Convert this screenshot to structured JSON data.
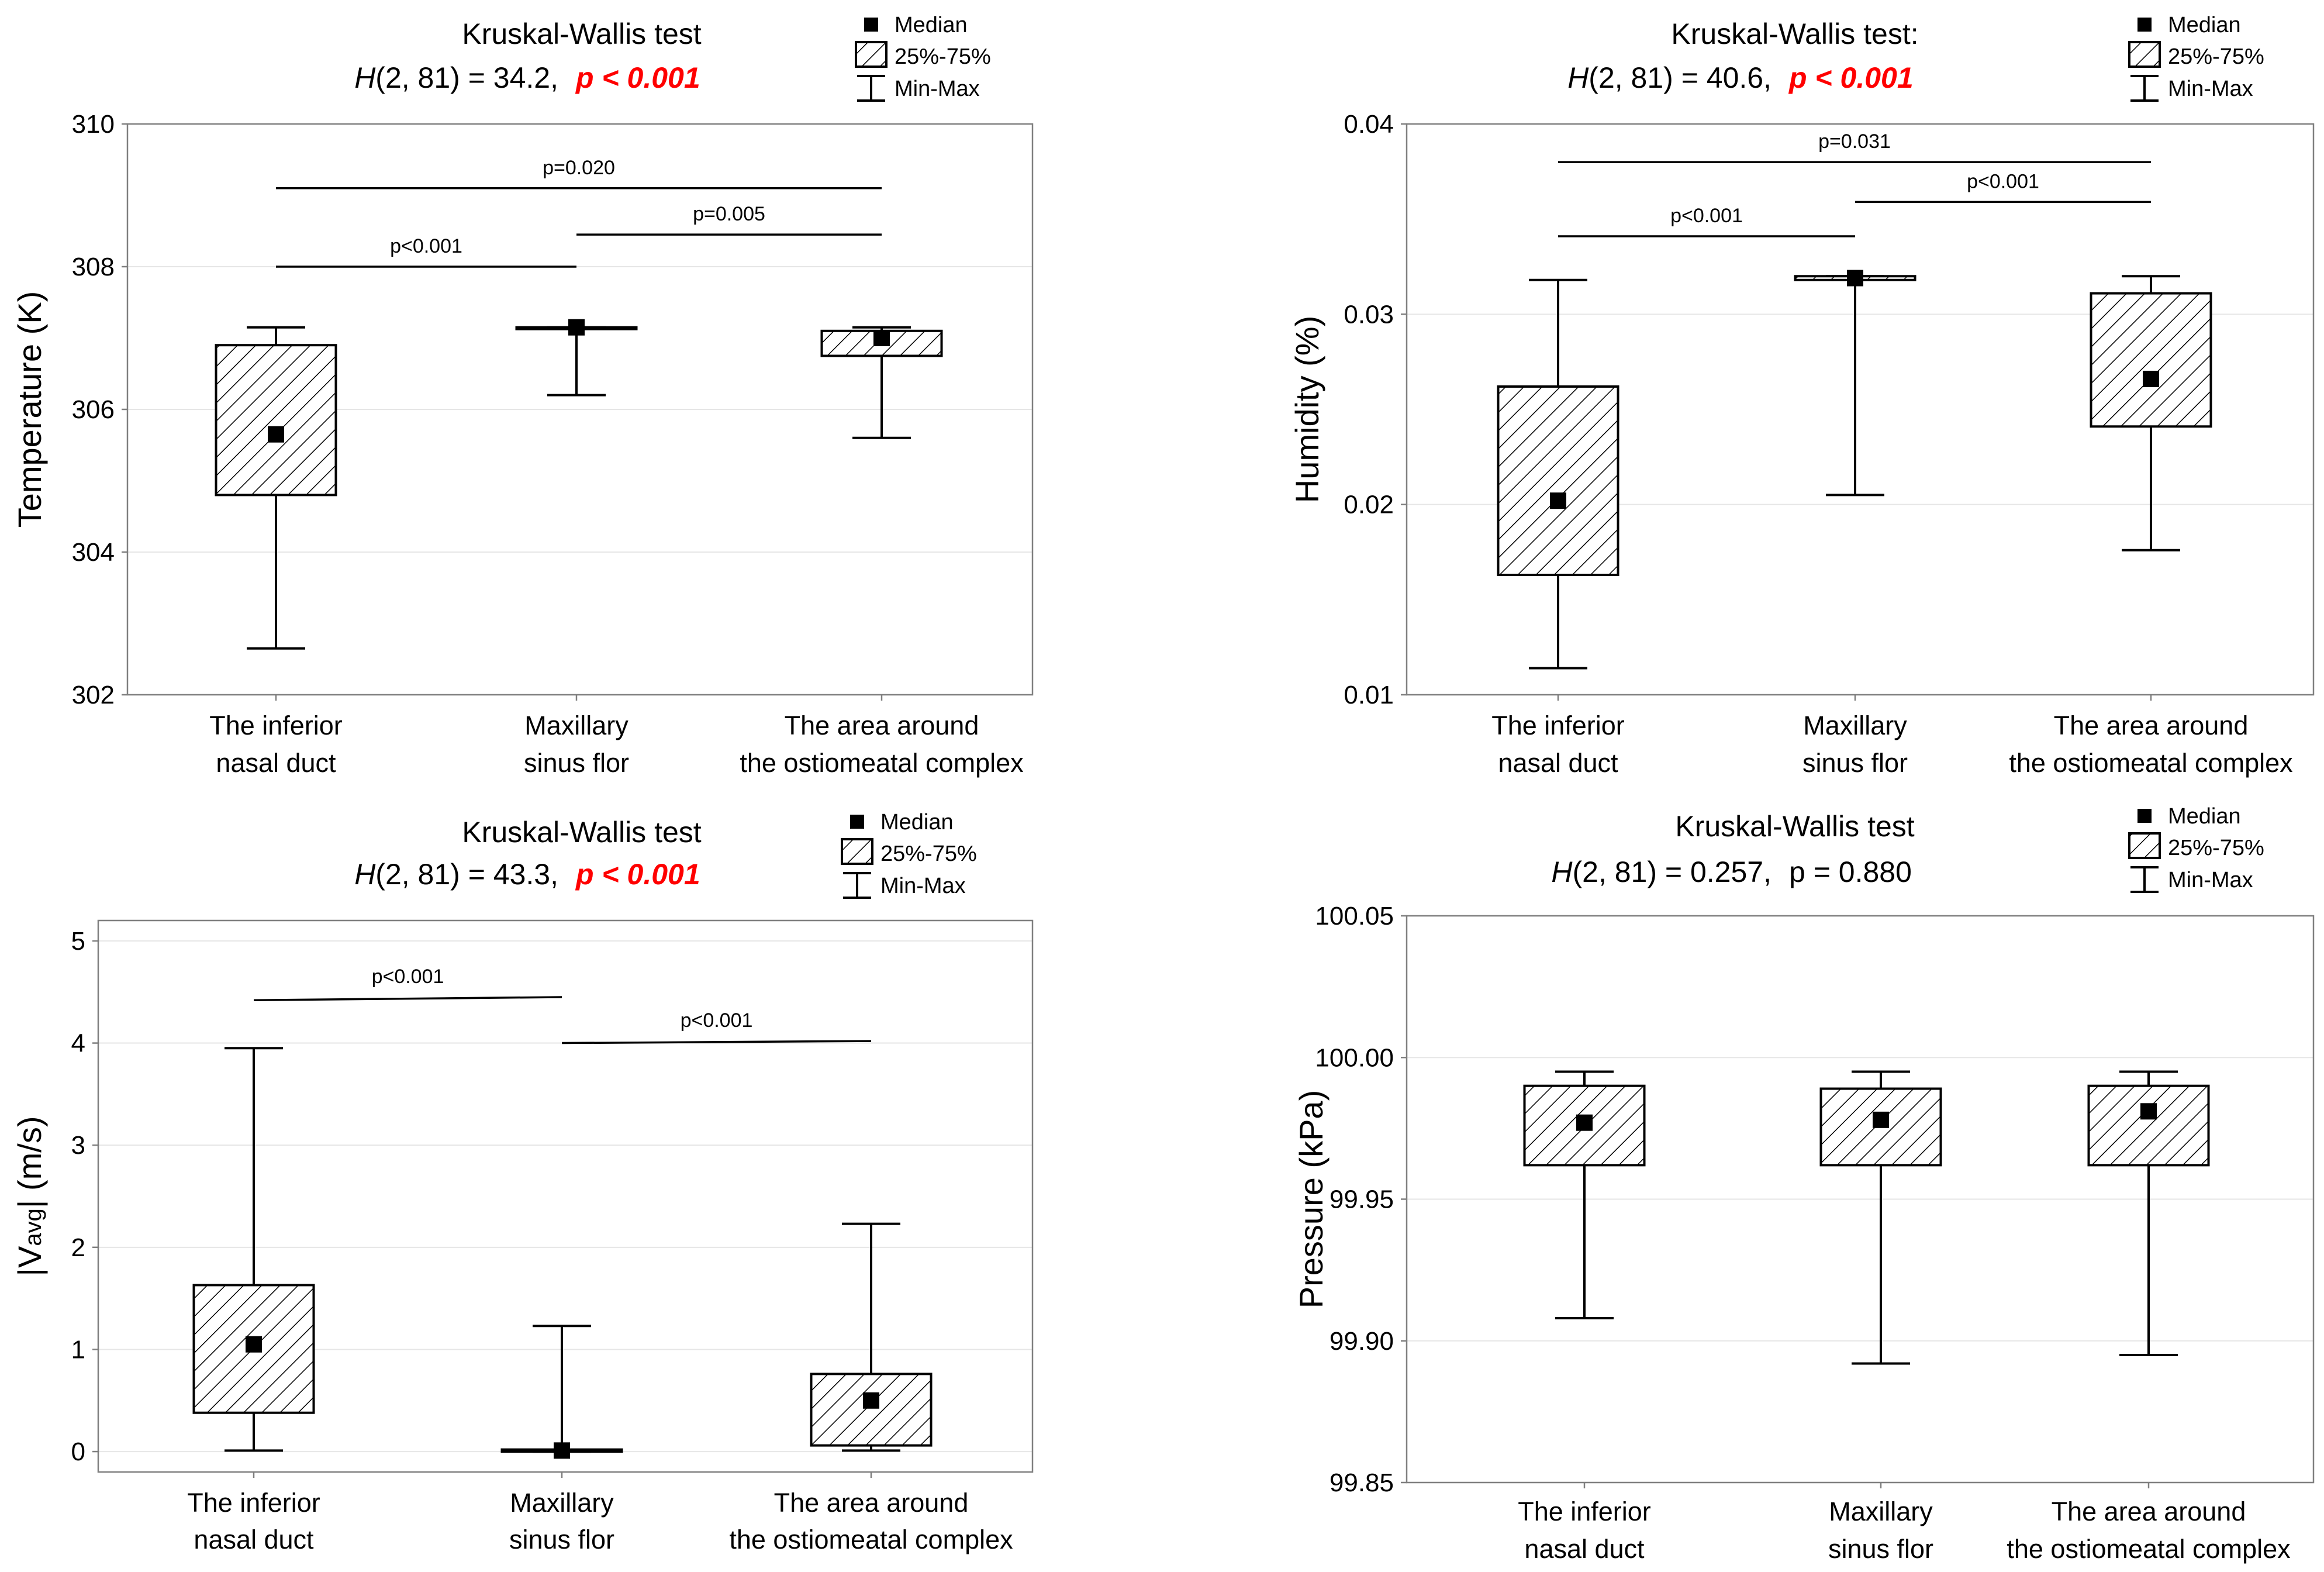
{
  "legend": {
    "median": "Median",
    "box": "25%-75%",
    "whisker": "Min-Max"
  },
  "chart_data": [
    {
      "type": "box",
      "title": "Kruskal-Wallis test",
      "stat_prefix": "H",
      "stat_rest": "(2, 81) = 34.2,",
      "p_text": "p < 0.001",
      "p_significant": true,
      "ylabel": "Temperature (K)",
      "ylim": [
        302,
        310
      ],
      "yticks": [
        302,
        304,
        306,
        308,
        310
      ],
      "ytick_labels": [
        "302",
        "304",
        "306",
        "308",
        "310"
      ],
      "categories": [
        [
          "The inferior",
          "nasal duct"
        ],
        [
          "Maxillary",
          "sinus flor"
        ],
        [
          "The area around",
          "the ostiomeatal complex"
        ]
      ],
      "boxes": [
        {
          "min": 302.65,
          "q1": 304.8,
          "median": 305.65,
          "q3": 306.9,
          "max": 307.15
        },
        {
          "min": 306.2,
          "q1": 307.15,
          "median": 307.15,
          "q3": 307.15,
          "max": 307.15
        },
        {
          "min": 305.6,
          "q1": 306.75,
          "median": 307.0,
          "q3": 307.1,
          "max": 307.15
        }
      ],
      "comparisons": [
        {
          "from": 0,
          "to": 1,
          "y": 308.0,
          "label": "p<0.001"
        },
        {
          "from": 1,
          "to": 2,
          "y": 308.45,
          "label": "p=0.005"
        },
        {
          "from": 0,
          "to": 2,
          "y": 309.1,
          "label": "p=0.020"
        }
      ]
    },
    {
      "type": "box",
      "title": "Kruskal-Wallis test:",
      "stat_prefix": "H",
      "stat_rest": "(2, 81) = 40.6,",
      "p_text": "p < 0.001",
      "p_significant": true,
      "ylabel": "Humidity (%)",
      "ylim": [
        0.01,
        0.04
      ],
      "yticks": [
        0.01,
        0.02,
        0.03,
        0.04
      ],
      "ytick_labels": [
        "0.01",
        "0.02",
        "0.03",
        "0.04"
      ],
      "categories": [
        [
          "The inferior",
          "nasal duct"
        ],
        [
          "Maxillary",
          "sinus flor"
        ],
        [
          "The area around",
          "the ostiomeatal complex"
        ]
      ],
      "boxes": [
        {
          "min": 0.0114,
          "q1": 0.0163,
          "median": 0.0202,
          "q3": 0.0262,
          "max": 0.0318
        },
        {
          "min": 0.0205,
          "q1": 0.0318,
          "median": 0.0319,
          "q3": 0.032,
          "max": 0.032
        },
        {
          "min": 0.0176,
          "q1": 0.0241,
          "median": 0.0266,
          "q3": 0.0311,
          "max": 0.032
        }
      ],
      "comparisons": [
        {
          "from": 0,
          "to": 1,
          "y": 0.0341,
          "label": "p<0.001"
        },
        {
          "from": 1,
          "to": 2,
          "y": 0.0359,
          "label": "p<0.001"
        },
        {
          "from": 0,
          "to": 2,
          "y": 0.038,
          "label": "p=0.031"
        }
      ]
    },
    {
      "type": "box",
      "title": "Kruskal-Wallis test",
      "stat_prefix": "H",
      "stat_rest": "(2, 81) = 43.3,",
      "p_text": "p < 0.001",
      "p_significant": true,
      "ylabel": "|V",
      "ylabel_sub": "avg",
      "ylabel_tail": "| (m/s)",
      "ylim": [
        -0.2,
        5.2
      ],
      "yticks": [
        0,
        1,
        2,
        3,
        4,
        5
      ],
      "ytick_labels": [
        "0",
        "1",
        "2",
        "3",
        "4",
        "5"
      ],
      "categories": [
        [
          "The inferior",
          "nasal duct"
        ],
        [
          "Maxillary",
          "sinus flor"
        ],
        [
          "The area around",
          "the ostiomeatal complex"
        ]
      ],
      "boxes": [
        {
          "min": 0.01,
          "q1": 0.38,
          "median": 1.05,
          "q3": 1.63,
          "max": 3.95
        },
        {
          "min": 0.0,
          "q1": 0.0,
          "median": 0.01,
          "q3": 0.02,
          "max": 1.23
        },
        {
          "min": 0.01,
          "q1": 0.06,
          "median": 0.5,
          "q3": 0.76,
          "max": 2.23
        }
      ],
      "comparisons": [
        {
          "from": 0,
          "to": 1,
          "y": 4.42,
          "y2": 4.45,
          "label": "p<0.001"
        },
        {
          "from": 1,
          "to": 2,
          "y": 4.0,
          "y2": 4.02,
          "label": "p<0.001"
        }
      ]
    },
    {
      "type": "box",
      "title": "Kruskal-Wallis test",
      "stat_prefix": "H",
      "stat_rest": "(2, 81) = 0.257,",
      "p_text": "p = 0.880",
      "p_significant": false,
      "ylabel": "Pressure (kPa)",
      "ylim": [
        99.85,
        100.05
      ],
      "yticks": [
        99.85,
        99.9,
        99.95,
        100.0,
        100.05
      ],
      "ytick_labels": [
        "99.85",
        "99.90",
        "99.95",
        "100.00",
        "100.05"
      ],
      "categories": [
        [
          "The inferior",
          "nasal duct"
        ],
        [
          "Maxillary",
          "sinus flor"
        ],
        [
          "The area around",
          "the ostiomeatal complex"
        ]
      ],
      "boxes": [
        {
          "min": 99.908,
          "q1": 99.962,
          "median": 99.977,
          "q3": 99.99,
          "max": 99.995
        },
        {
          "min": 99.892,
          "q1": 99.962,
          "median": 99.978,
          "q3": 99.989,
          "max": 99.995
        },
        {
          "min": 99.895,
          "q1": 99.962,
          "median": 99.981,
          "q3": 99.99,
          "max": 99.995
        }
      ],
      "comparisons": []
    }
  ]
}
